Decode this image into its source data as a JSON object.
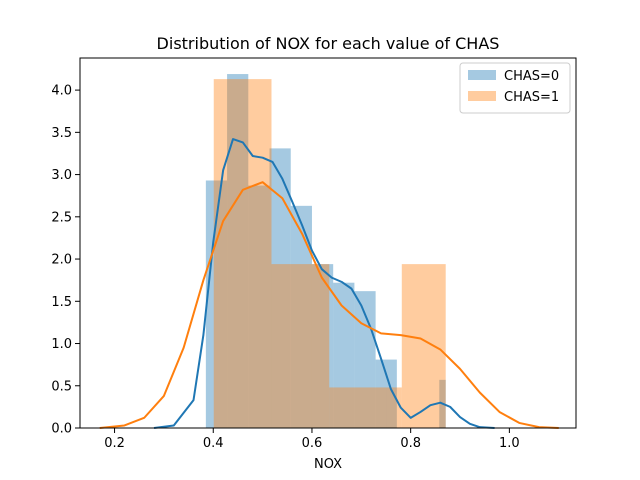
{
  "chart_data": {
    "type": "histogram-kde",
    "title": "Distribution of NOX for each value of CHAS",
    "xlabel": "NOX",
    "ylabel": "",
    "xlim": [
      0.13,
      1.135
    ],
    "ylim": [
      0,
      4.38
    ],
    "xticks": [
      0.2,
      0.4,
      0.6,
      0.8,
      1.0
    ],
    "xtick_labels": [
      "0.2",
      "0.4",
      "0.6",
      "0.8",
      "1.0"
    ],
    "yticks": [
      0.0,
      0.5,
      1.0,
      1.5,
      2.0,
      2.5,
      3.0,
      3.5,
      4.0
    ],
    "ytick_labels": [
      "0.0",
      "0.5",
      "1.0",
      "1.5",
      "2.0",
      "2.5",
      "3.0",
      "3.5",
      "4.0"
    ],
    "legend_position": "upper-right",
    "series": [
      {
        "name": "CHAS=0",
        "color": "#1f77b4",
        "bar_color": "#a6c8e0",
        "bins": [
          {
            "x0": 0.385,
            "x1": 0.428,
            "height": 2.93
          },
          {
            "x0": 0.428,
            "x1": 0.471,
            "height": 4.19
          },
          {
            "x0": 0.471,
            "x1": 0.514,
            "height": 2.87
          },
          {
            "x0": 0.514,
            "x1": 0.557,
            "height": 3.31
          },
          {
            "x0": 0.557,
            "x1": 0.6,
            "height": 2.63
          },
          {
            "x0": 0.6,
            "x1": 0.643,
            "height": 1.94
          },
          {
            "x0": 0.643,
            "x1": 0.686,
            "height": 1.72
          },
          {
            "x0": 0.686,
            "x1": 0.729,
            "height": 1.62
          },
          {
            "x0": 0.729,
            "x1": 0.772,
            "height": 0.81
          },
          {
            "x0": 0.772,
            "x1": 0.815,
            "height": 0.0
          },
          {
            "x0": 0.815,
            "x1": 0.858,
            "height": 0.0
          },
          {
            "x0": 0.858,
            "x1": 0.871,
            "height": 0.57
          }
        ],
        "kde": {
          "x": [
            0.28,
            0.32,
            0.36,
            0.38,
            0.4,
            0.42,
            0.44,
            0.46,
            0.48,
            0.5,
            0.52,
            0.54,
            0.56,
            0.58,
            0.6,
            0.62,
            0.64,
            0.66,
            0.68,
            0.7,
            0.72,
            0.74,
            0.76,
            0.78,
            0.8,
            0.82,
            0.84,
            0.86,
            0.88,
            0.9,
            0.92,
            0.94,
            0.97
          ],
          "y": [
            0.0,
            0.03,
            0.33,
            1.1,
            2.2,
            3.05,
            3.42,
            3.38,
            3.22,
            3.2,
            3.15,
            2.95,
            2.68,
            2.4,
            2.1,
            1.88,
            1.78,
            1.73,
            1.65,
            1.45,
            1.17,
            0.82,
            0.46,
            0.24,
            0.12,
            0.19,
            0.27,
            0.3,
            0.25,
            0.13,
            0.05,
            0.01,
            0.0
          ]
        }
      },
      {
        "name": "CHAS=1",
        "color": "#ff7f0e",
        "bar_color": "#ffc89a",
        "bins": [
          {
            "x0": 0.401,
            "x1": 0.518,
            "height": 4.13
          },
          {
            "x0": 0.518,
            "x1": 0.635,
            "height": 1.94
          },
          {
            "x0": 0.635,
            "x1": 0.752,
            "height": 0.48
          },
          {
            "x0": 0.752,
            "x1": 0.782,
            "height": 0.48
          },
          {
            "x0": 0.782,
            "x1": 0.871,
            "height": 1.94
          }
        ],
        "kde": {
          "x": [
            0.17,
            0.22,
            0.26,
            0.3,
            0.34,
            0.38,
            0.42,
            0.46,
            0.5,
            0.54,
            0.58,
            0.62,
            0.66,
            0.7,
            0.74,
            0.78,
            0.82,
            0.86,
            0.9,
            0.94,
            0.98,
            1.02,
            1.06,
            1.1
          ],
          "y": [
            0.0,
            0.03,
            0.12,
            0.38,
            0.95,
            1.75,
            2.45,
            2.82,
            2.91,
            2.72,
            2.3,
            1.78,
            1.45,
            1.24,
            1.12,
            1.1,
            1.06,
            0.93,
            0.7,
            0.42,
            0.19,
            0.06,
            0.01,
            0.0
          ]
        }
      }
    ]
  }
}
